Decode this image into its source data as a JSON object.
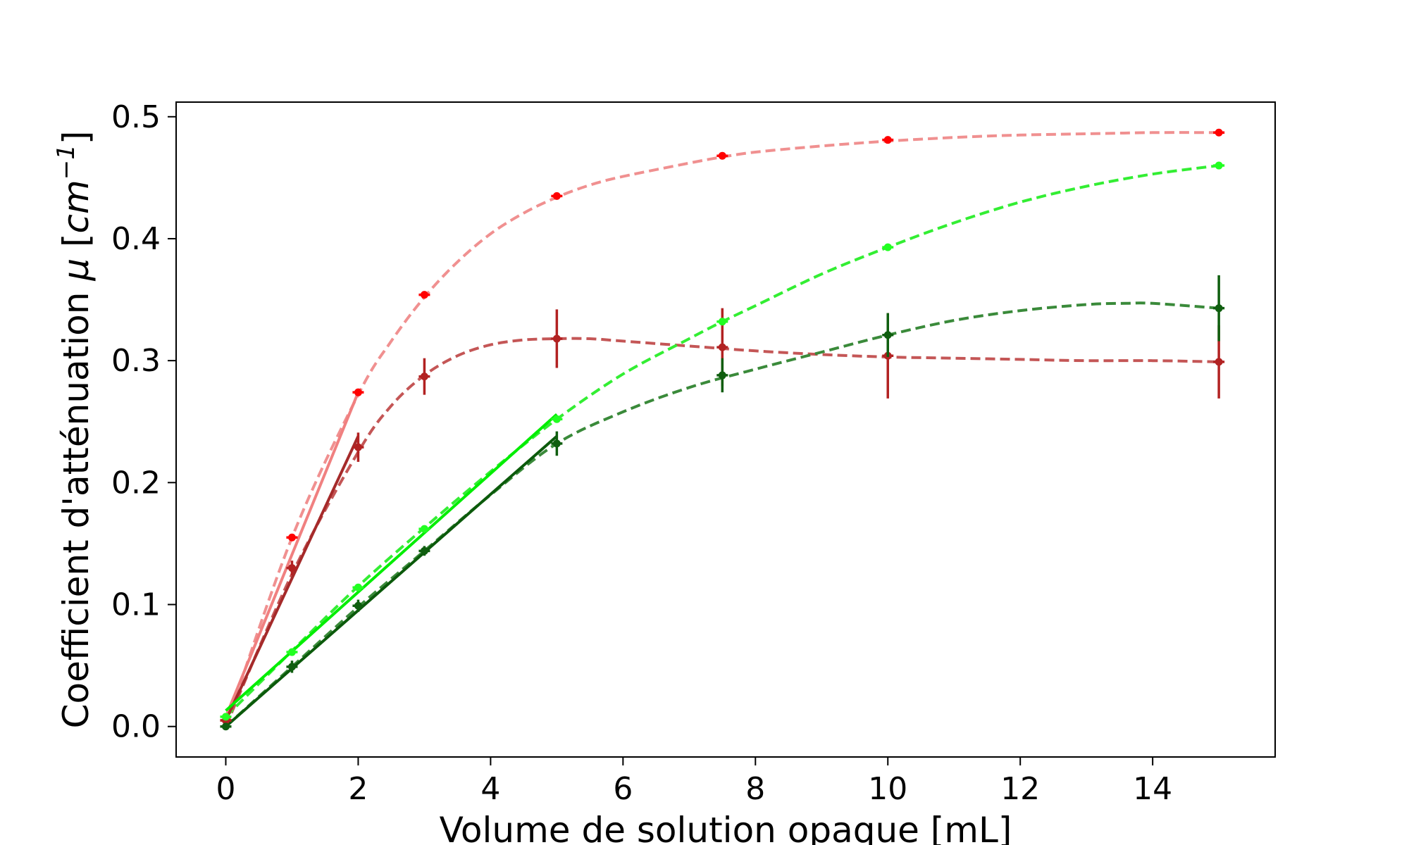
{
  "chart_data": {
    "type": "scatter",
    "title": "",
    "xlabel": "Volume de solution opaque [mL]",
    "ylabel": "Coefficient d'atténuation μ [cm⁻¹]",
    "ylabel_parts": {
      "text": "Coefficient d'atténuation ",
      "mu": "μ",
      "unit_open": " [",
      "cm": "cm",
      "sup": "−1",
      "unit_close": "]"
    },
    "xlim": [
      -0.75,
      15.85
    ],
    "ylim": [
      -0.025,
      0.512
    ],
    "xticks": [
      0,
      2,
      4,
      6,
      8,
      10,
      12,
      14
    ],
    "yticks": [
      0.0,
      0.1,
      0.2,
      0.3,
      0.4,
      0.5
    ],
    "ytick_labels": [
      "0.0",
      "0.1",
      "0.2",
      "0.3",
      "0.4",
      "0.5"
    ],
    "grid": false,
    "legend": "none",
    "series": [
      {
        "color": "#ff0000",
        "fit_color": "#f08080",
        "curve_color": "#f09090",
        "x": [
          0,
          1,
          2,
          3,
          5,
          7.5,
          10,
          15
        ],
        "y": [
          0.005,
          0.155,
          0.274,
          0.354,
          0.435,
          0.468,
          0.481,
          0.487
        ],
        "yerr": [
          0.001,
          0.002,
          0.002,
          0.002,
          0.002,
          0.002,
          0.002,
          0.002
        ],
        "linear_fit": {
          "x": [
            0,
            2
          ],
          "y": [
            0.008,
            0.274
          ]
        },
        "curve": {
          "x": [
            0,
            1,
            2,
            2.5,
            3,
            3.5,
            4,
            4.5,
            5,
            5.5,
            6,
            7,
            7.5,
            8,
            9,
            10,
            11,
            12,
            13,
            14,
            15
          ],
          "y": [
            0.0,
            0.155,
            0.272,
            0.316,
            0.352,
            0.381,
            0.404,
            0.421,
            0.434,
            0.444,
            0.451,
            0.462,
            0.467,
            0.471,
            0.476,
            0.48,
            0.483,
            0.485,
            0.486,
            0.487,
            0.487
          ]
        }
      },
      {
        "color": "#b22222",
        "fit_color": "#a52a2a",
        "curve_color": "#c45656",
        "x": [
          0,
          1,
          2,
          3,
          5,
          7.5,
          10,
          15
        ],
        "y": [
          0.005,
          0.13,
          0.229,
          0.287,
          0.318,
          0.311,
          0.304,
          0.299
        ],
        "yerr": [
          0.002,
          0.006,
          0.012,
          0.015,
          0.024,
          0.032,
          0.035,
          0.03
        ],
        "linear_fit": {
          "x": [
            0,
            2
          ],
          "y": [
            0.005,
            0.238
          ]
        },
        "curve": {
          "x": [
            0,
            1,
            2,
            2.5,
            3,
            3.5,
            4,
            4.5,
            5,
            5.5,
            6,
            7,
            8,
            9,
            10,
            11,
            12,
            13,
            14,
            15
          ],
          "y": [
            0.0,
            0.125,
            0.225,
            0.263,
            0.288,
            0.304,
            0.313,
            0.317,
            0.318,
            0.318,
            0.316,
            0.312,
            0.308,
            0.305,
            0.303,
            0.302,
            0.301,
            0.3,
            0.3,
            0.299
          ]
        }
      },
      {
        "color": "#22ff22",
        "fit_color": "#00ee00",
        "curve_color": "#33ee33",
        "x": [
          0,
          1,
          2,
          3,
          5,
          7.5,
          10,
          15
        ],
        "y": [
          0.008,
          0.061,
          0.114,
          0.162,
          0.252,
          0.332,
          0.393,
          0.46
        ],
        "yerr": [
          0.001,
          0.002,
          0.002,
          0.002,
          0.002,
          0.002,
          0.002,
          0.002
        ],
        "linear_fit": {
          "x": [
            0,
            5
          ],
          "y": [
            0.013,
            0.256
          ]
        },
        "curve": {
          "x": [
            0,
            1,
            2,
            3,
            4,
            5,
            6,
            7,
            7.5,
            8,
            9,
            10,
            11,
            12,
            13,
            14,
            15
          ],
          "y": [
            0.008,
            0.062,
            0.115,
            0.163,
            0.209,
            0.252,
            0.289,
            0.318,
            0.332,
            0.345,
            0.371,
            0.393,
            0.413,
            0.43,
            0.443,
            0.453,
            0.46
          ]
        }
      },
      {
        "color": "#0f5e0f",
        "fit_color": "#0b5a0b",
        "curve_color": "#3a8a3a",
        "x": [
          0,
          1,
          2,
          3,
          5,
          7.5,
          10,
          15
        ],
        "y": [
          0.0,
          0.049,
          0.099,
          0.144,
          0.232,
          0.288,
          0.321,
          0.343
        ],
        "yerr": [
          0.002,
          0.005,
          0.005,
          0.004,
          0.01,
          0.014,
          0.018,
          0.027
        ],
        "linear_fit": {
          "x": [
            0,
            5
          ],
          "y": [
            0.0,
            0.238
          ]
        },
        "curve": {
          "x": [
            0,
            1,
            2,
            3,
            4,
            5,
            6,
            7,
            8,
            9,
            10,
            11,
            12,
            13,
            13.6,
            14,
            15
          ],
          "y": [
            0.0,
            0.049,
            0.098,
            0.144,
            0.19,
            0.232,
            0.258,
            0.278,
            0.293,
            0.307,
            0.321,
            0.333,
            0.341,
            0.346,
            0.347,
            0.347,
            0.343
          ]
        }
      }
    ]
  }
}
